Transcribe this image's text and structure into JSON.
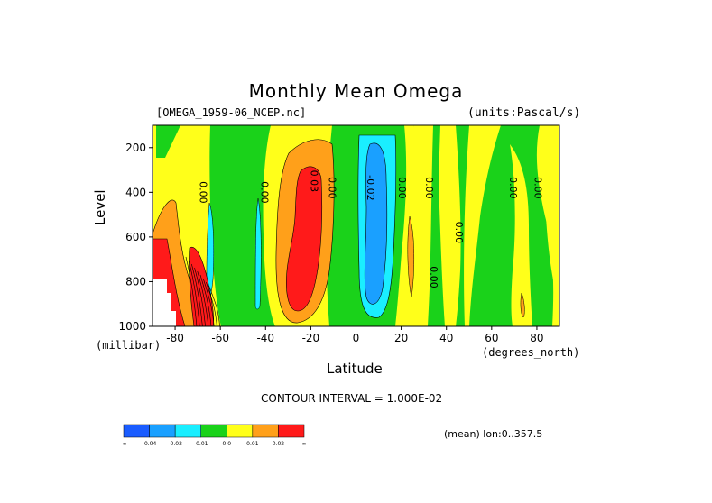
{
  "chart_data": {
    "type": "heatmap",
    "title": "Monthly Mean Omega",
    "dataset_label": "[OMEGA_1959-06_NCEP.nc]",
    "units_label": "(units:Pascal/s)",
    "xlabel": "Latitude",
    "ylabel": "Level",
    "x_unit_label": "(degrees_north)",
    "y_unit_label": "(millibar)",
    "xlim": [
      -90,
      90
    ],
    "ylim": [
      1000,
      100
    ],
    "x_ticks": [
      -80,
      -60,
      -40,
      -20,
      0,
      20,
      40,
      60,
      80
    ],
    "x_tick_labels": [
      "-80",
      "-60",
      "-40",
      "-20",
      "0",
      "20",
      "40",
      "60",
      "80"
    ],
    "y_ticks": [
      200,
      400,
      600,
      800,
      1000
    ],
    "y_tick_labels": [
      "200",
      "400",
      "600",
      "800",
      "1000"
    ],
    "contour_interval_text": "CONTOUR INTERVAL = 1.000E-02",
    "footnote": "(mean) lon:0..357.5",
    "colorbar": {
      "colors": [
        "#1a5cff",
        "#1aa0ff",
        "#1aeeff",
        "#1ad21a",
        "#ffff1a",
        "#ffa01a",
        "#ff1a1a"
      ],
      "labels": [
        "-∞",
        "-0.04",
        "-0.02",
        "-0.01",
        "0.0",
        "0.01",
        "0.02",
        "∞"
      ]
    },
    "contour_labels": [
      {
        "lat": -69,
        "level": 400,
        "text": "0.00"
      },
      {
        "lat": -42,
        "level": 400,
        "text": "0.00"
      },
      {
        "lat": -20,
        "level": 350,
        "text": "0.03"
      },
      {
        "lat": -12,
        "level": 380,
        "text": "0.00"
      },
      {
        "lat": 5,
        "level": 380,
        "text": "-0.02"
      },
      {
        "lat": 19,
        "level": 380,
        "text": "0.00"
      },
      {
        "lat": 31,
        "level": 380,
        "text": "0.00"
      },
      {
        "lat": 44,
        "level": 580,
        "text": "0.00"
      },
      {
        "lat": 33,
        "level": 780,
        "text": "0.00"
      },
      {
        "lat": 68,
        "level": 380,
        "text": "0.00"
      },
      {
        "lat": 79,
        "level": 380,
        "text": "0.00"
      }
    ],
    "regions": [
      {
        "value": "0.0 to 0.01",
        "color": "#ffff1a",
        "note": "background"
      },
      {
        "value": "-0.01 to 0.0",
        "color": "#1ad21a",
        "lat": [
          -65,
          -40
        ],
        "level": [
          100,
          1000
        ]
      },
      {
        "value": "-0.01 to 0.0",
        "color": "#1ad21a",
        "lat": [
          -15,
          22
        ],
        "level": [
          100,
          1000
        ]
      },
      {
        "value": "-0.01 to 0.0",
        "color": "#1ad21a",
        "lat": [
          30,
          78
        ],
        "level": [
          100,
          1000
        ]
      },
      {
        "value": "0.01 to 0.02",
        "color": "#ffa01a",
        "lat": [
          -35,
          -10
        ],
        "level": [
          180,
          1000
        ]
      },
      {
        "value": "> 0.02",
        "color": "#ff1a1a",
        "lat": [
          -24,
          -14
        ],
        "level": [
          260,
          880
        ]
      },
      {
        "value": "-0.02 to -0.01",
        "color": "#1aeeff",
        "lat": [
          3,
          17
        ],
        "level": [
          150,
          1000
        ]
      },
      {
        "value": "-0.04 to -0.02",
        "color": "#1aa0ff",
        "lat": [
          6,
          13
        ],
        "level": [
          240,
          880
        ]
      },
      {
        "value": "0.01 to > 0.02",
        "color": "#ffa01a",
        "lat": [
          -90,
          -64
        ],
        "level": [
          480,
          1000
        ]
      }
    ]
  }
}
